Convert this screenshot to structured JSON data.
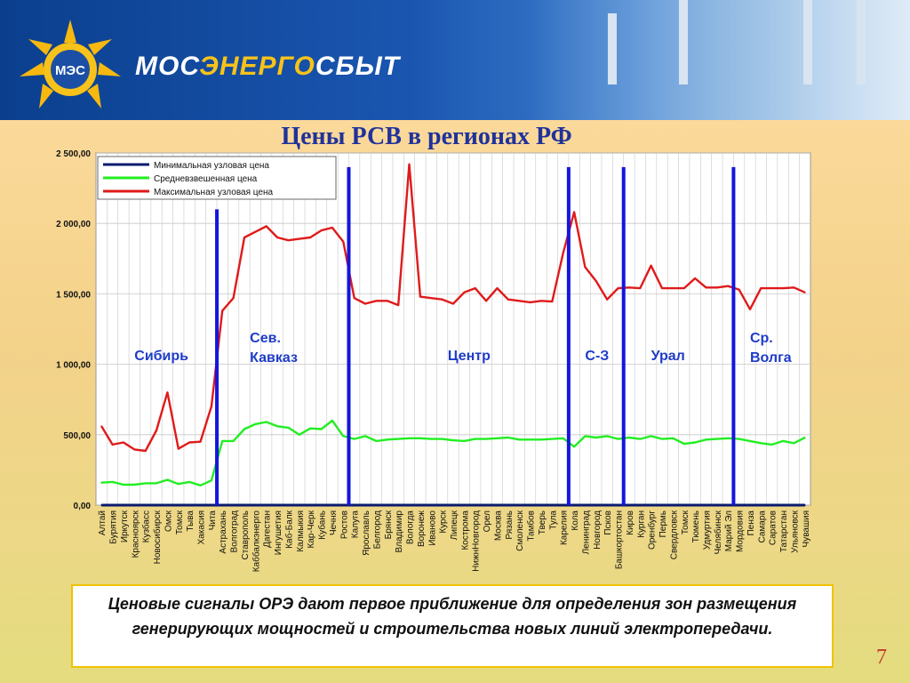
{
  "header": {
    "brand_part1": "МОС",
    "brand_part2": "ЭНЕРГО",
    "brand_part3": "СБЫТ",
    "logo_text": "МЭС"
  },
  "slide_title": "Цены РСВ в регионах РФ",
  "note": "Ценовые сигналы ОРЭ дают первое приближение для определения зон размещения генерирующих мощностей и строительства новых линий электропередачи.",
  "page_number": "7",
  "colors": {
    "min": "#0a1a6e",
    "avg": "#22ee22",
    "max": "#e01a1a",
    "divider": "#1515dd",
    "zone_text": "#1f3cc8"
  },
  "chart_data": {
    "type": "line",
    "ylim": [
      0,
      2500
    ],
    "yticks": [
      "0,00",
      "500,00",
      "1 000,00",
      "1 500,00",
      "2 000,00",
      "2 500,00"
    ],
    "grid": true,
    "legend_position": "top-left",
    "categories": [
      "Алтай",
      "Бурятия",
      "Иркутск",
      "Красноярск",
      "Кузбасс",
      "Новосибирск",
      "Омск",
      "Томск",
      "Тыва",
      "Хакасия",
      "Чита",
      "Астрахань",
      "Волгоград",
      "Ставрополь",
      "Каббалкэнерго",
      "Дагестан",
      "Ингушетия",
      "Каб-Балк",
      "Калмыкия",
      "Кар-Черк",
      "Кубань",
      "Чечня",
      "Ростов",
      "Калуга",
      "Ярославль",
      "Белгород",
      "Брянск",
      "Владимир",
      "Вологда",
      "Воронеж",
      "Иваново",
      "Курск",
      "Липецк",
      "Кострома",
      "НижнНовгород",
      "Орел",
      "Москва",
      "Рязань",
      "Смоленск",
      "Тамбов",
      "Тверь",
      "Тула",
      "Карелия",
      "Кола",
      "Ленинград",
      "Новгород",
      "Псков",
      "Башкортостан",
      "Киров",
      "Курган",
      "Оренбург",
      "Пермь",
      "Свердловск",
      "Томск",
      "Тюмень",
      "Удмуртия",
      "Челябинск",
      "Марий Эл",
      "Мордовия",
      "Пенза",
      "Самара",
      "Саратов",
      "Татарстан",
      "Ульяновск",
      "Чувашия"
    ],
    "series": [
      {
        "name": "Минимальная узловая цена",
        "values": [
          0,
          0,
          0,
          0,
          0,
          0,
          0,
          0,
          0,
          0,
          0,
          0,
          0,
          0,
          0,
          0,
          0,
          0,
          0,
          0,
          0,
          0,
          0,
          0,
          0,
          0,
          0,
          0,
          0,
          0,
          0,
          0,
          0,
          0,
          0,
          0,
          0,
          0,
          0,
          0,
          0,
          0,
          0,
          0,
          0,
          0,
          0,
          0,
          0,
          0,
          0,
          0,
          0,
          0,
          0,
          0,
          0,
          0,
          0,
          0,
          0,
          0,
          0,
          0,
          0
        ]
      },
      {
        "name": "Средневзвешенная цена",
        "values": [
          160,
          165,
          145,
          145,
          155,
          155,
          180,
          150,
          165,
          140,
          175,
          455,
          455,
          540,
          575,
          590,
          560,
          550,
          500,
          545,
          540,
          600,
          490,
          470,
          490,
          455,
          465,
          470,
          475,
          475,
          470,
          470,
          460,
          455,
          470,
          470,
          475,
          480,
          465,
          465,
          465,
          470,
          475,
          415,
          490,
          480,
          490,
          470,
          480,
          470,
          490,
          470,
          475,
          435,
          445,
          465,
          470,
          475,
          470,
          455,
          440,
          430,
          455,
          440,
          480
        ]
      },
      {
        "name": "Максимальная узловая цена",
        "values": [
          560,
          430,
          445,
          395,
          385,
          530,
          800,
          400,
          445,
          450,
          700,
          1380,
          1470,
          1900,
          1940,
          1980,
          1900,
          1880,
          1890,
          1900,
          1950,
          1970,
          1870,
          1470,
          1430,
          1450,
          1450,
          1420,
          2420,
          1480,
          1470,
          1460,
          1430,
          1510,
          1540,
          1450,
          1540,
          1460,
          1450,
          1440,
          1450,
          1445,
          1790,
          2080,
          1690,
          1590,
          1460,
          1540,
          1545,
          1540,
          1700,
          1540,
          1540,
          1540,
          1610,
          1545,
          1545,
          1555,
          1530,
          1390,
          1540,
          1540,
          1540,
          1545,
          1510
        ]
      }
    ],
    "dividers": [
      {
        "after_index": 10,
        "top_value": 2100
      },
      {
        "after_index": 22,
        "top_value": 2400
      },
      {
        "after_index": 42,
        "top_value": 2400
      },
      {
        "after_index": 47,
        "top_value": 2400
      },
      {
        "after_index": 57,
        "top_value": 2400
      }
    ],
    "zones": [
      {
        "lines": [
          "Сибирь"
        ],
        "index": 3
      },
      {
        "lines": [
          "Сев.",
          "Кавказ"
        ],
        "index": 13.5
      },
      {
        "lines": [
          "Центр"
        ],
        "index": 31.5
      },
      {
        "lines": [
          "С-З"
        ],
        "index": 44
      },
      {
        "lines": [
          "Урал"
        ],
        "index": 50
      },
      {
        "lines": [
          "Ср.",
          "Волга"
        ],
        "index": 59
      }
    ]
  }
}
